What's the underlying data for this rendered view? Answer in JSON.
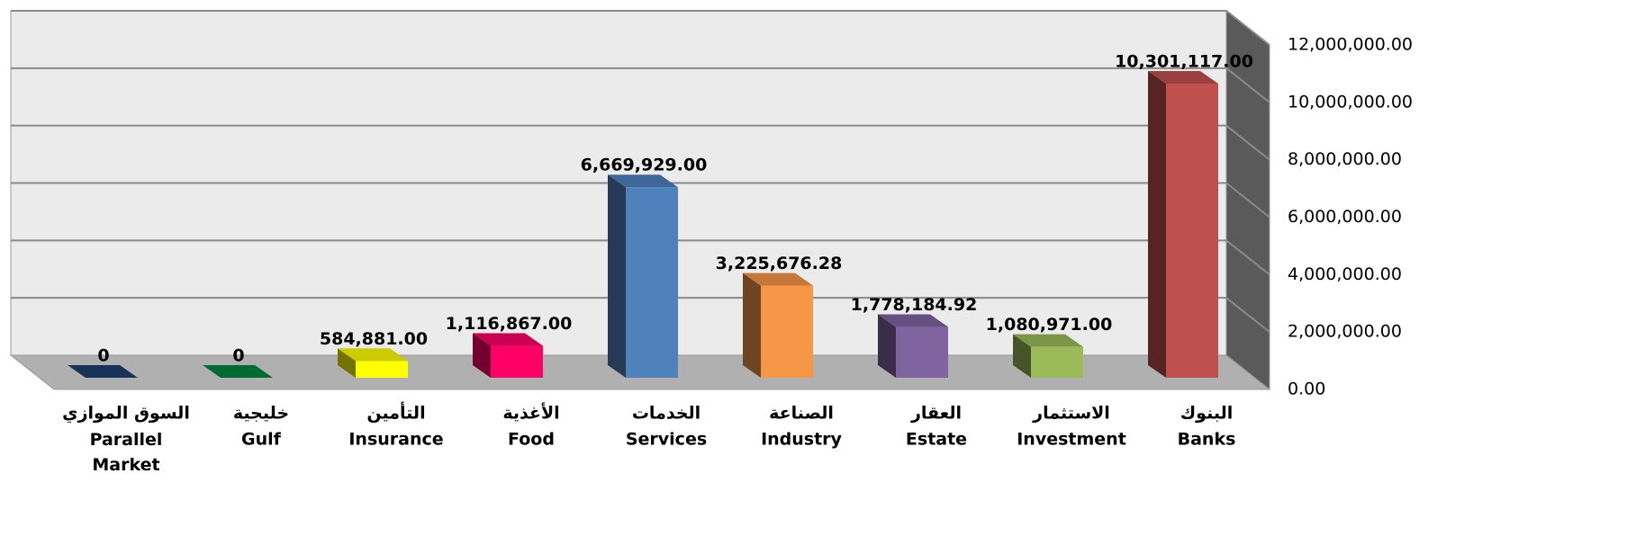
{
  "chart_data": {
    "type": "bar3d",
    "categories": [
      {
        "ar": "السوق الموازي",
        "en": "Parallel Market"
      },
      {
        "ar": "خليجية",
        "en": "Gulf"
      },
      {
        "ar": "التأمين",
        "en": "Insurance"
      },
      {
        "ar": "الأغذية",
        "en": "Food"
      },
      {
        "ar": "الخدمات",
        "en": "Services"
      },
      {
        "ar": "الصناعة",
        "en": "Industry"
      },
      {
        "ar": "العقار",
        "en": "Estate"
      },
      {
        "ar": "الاستثمار",
        "en": "Investment"
      },
      {
        "ar": "البنوك",
        "en": "Banks"
      }
    ],
    "values": [
      0,
      0,
      584881,
      1116867,
      6669929,
      3225676.28,
      1778184.92,
      1080971,
      10301117
    ],
    "value_labels": [
      "0",
      "0",
      "584,881.00",
      "1,116,867.00",
      "6,669,929.00",
      "3,225,676.28",
      "1,778,184.92",
      "1,080,971.00",
      "10,301,117.00"
    ],
    "colors": [
      "#1f3f6e",
      "#00843d",
      "#ffff00",
      "#ff0066",
      "#4f81bd",
      "#f79646",
      "#8064a2",
      "#9bbb59",
      "#c0504d"
    ],
    "ylim": [
      0,
      12000000
    ],
    "yticks": [
      {
        "value": 0,
        "label": "0.00"
      },
      {
        "value": 2000000,
        "label": "2,000,000.00"
      },
      {
        "value": 4000000,
        "label": "4,000,000.00"
      },
      {
        "value": 6000000,
        "label": "6,000,000.00"
      },
      {
        "value": 8000000,
        "label": "8,000,000.00"
      },
      {
        "value": 10000000,
        "label": "10,000,000.00"
      },
      {
        "value": 12000000,
        "label": "12,000,000.00"
      }
    ],
    "grid": true
  }
}
